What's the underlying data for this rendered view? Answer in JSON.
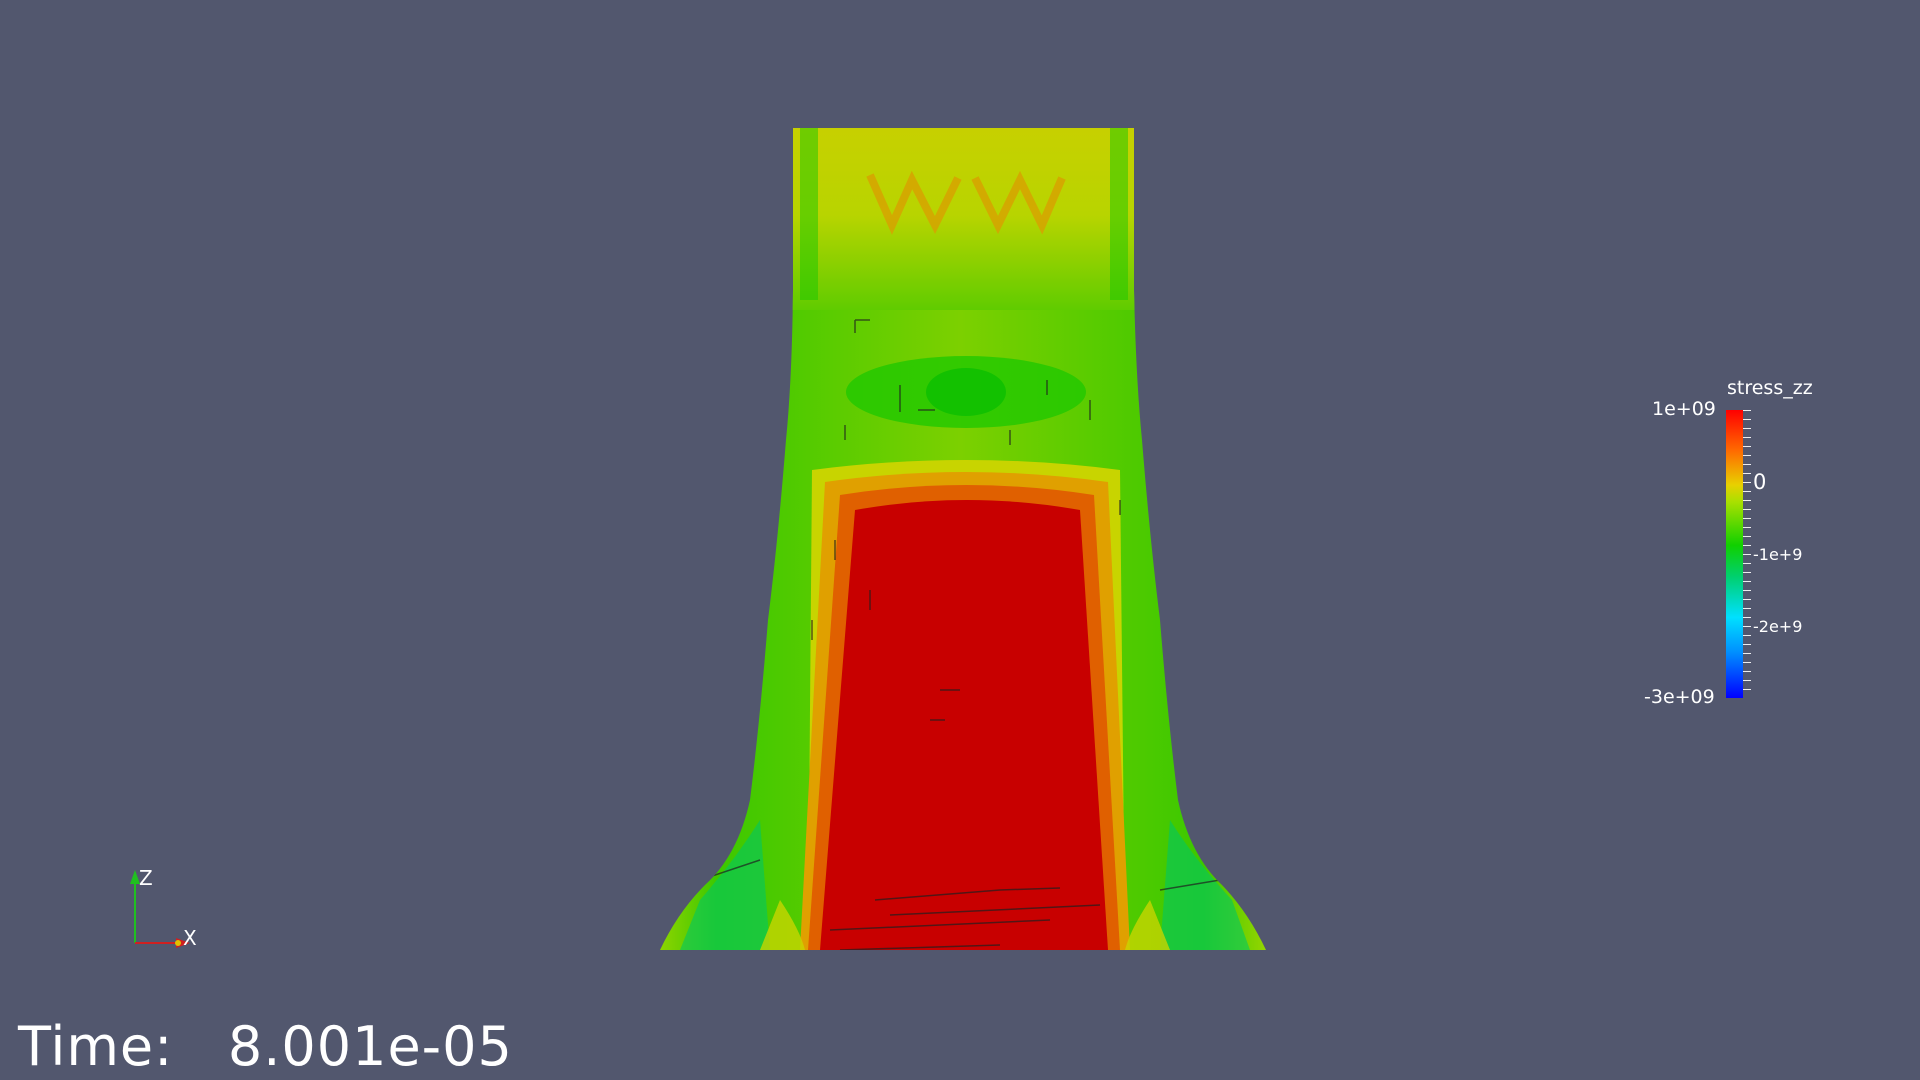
{
  "field_name": "stress_zz",
  "colorbar": {
    "max_label": "1e+09",
    "min_label": "-3e+09",
    "tick_labels": [
      "0",
      "-1e+9",
      "-2e+9"
    ],
    "colors": [
      "#ff0000",
      "#e8d000",
      "#10d000",
      "#00e0ff",
      "#0000ff"
    ]
  },
  "time": {
    "label": "Time:",
    "value": "8.001e-05"
  },
  "axes": {
    "z": "Z",
    "x": "X"
  },
  "colors": {
    "background": "#52576e",
    "high_stress": "#c80000",
    "mid_stress": "#c8d400",
    "low_stress": "#18c800"
  }
}
